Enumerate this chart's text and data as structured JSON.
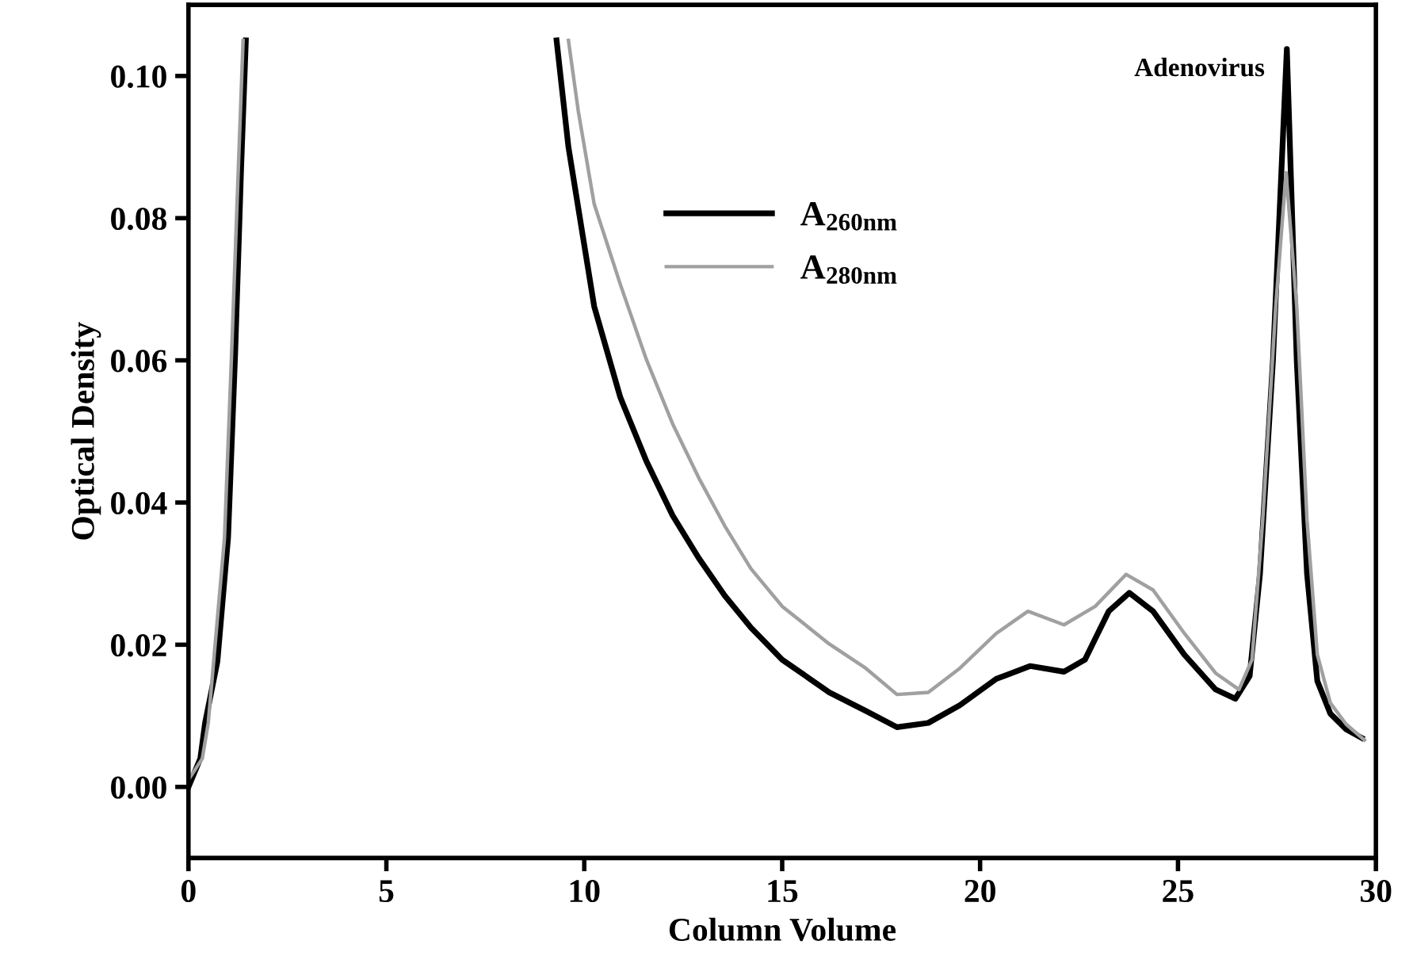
{
  "chart_data": {
    "type": "line",
    "xlabel": "Column Volume",
    "ylabel": "Optical Density",
    "xlim": [
      0,
      30
    ],
    "ylim": [
      -0.01,
      0.11
    ],
    "xticks": [
      0,
      5,
      10,
      15,
      20,
      25,
      30
    ],
    "yticks": [
      {
        "value": 0,
        "label": "0.00"
      },
      {
        "value": 0.02,
        "label": "0.02"
      },
      {
        "value": 0.04,
        "label": "0.04"
      },
      {
        "value": 0.06,
        "label": "0.06"
      },
      {
        "value": 0.08,
        "label": "0.08"
      },
      {
        "value": 0.1,
        "label": "0.10"
      }
    ],
    "grid": false,
    "legend": "center",
    "marker": "none",
    "line_style": "solid",
    "annotations": [
      {
        "text": "Adenovirus",
        "x": 27.75,
        "y": 0.1038
      }
    ],
    "series": [
      {
        "name": "A$_{260nm}$",
        "color": "#000000",
        "x": [
          0,
          0.3,
          0.42,
          0.73,
          1.0,
          1.18,
          1.33,
          1.45,
          null,
          9.3,
          9.6,
          10.25,
          10.91,
          11.57,
          12.23,
          12.89,
          13.55,
          14.21,
          15.0,
          16.19,
          17.11,
          17.9,
          18.69,
          19.49,
          20.41,
          21.27,
          22.12,
          22.65,
          23.25,
          23.77,
          24.37,
          25.16,
          25.95,
          26.45,
          26.81,
          27.07,
          27.4,
          27.75,
          28.0,
          28.26,
          28.52,
          28.85,
          29.25,
          29.64
        ],
        "values": [
          0,
          0.004,
          0.009,
          0.0176,
          0.035,
          0.061,
          0.087,
          0.105,
          null,
          0.105,
          0.09,
          0.0676,
          0.0548,
          0.0458,
          0.0382,
          0.0322,
          0.0269,
          0.0224,
          0.0179,
          0.0133,
          0.0107,
          0.0084,
          0.009,
          0.0115,
          0.0152,
          0.017,
          0.0162,
          0.0179,
          0.0247,
          0.0273,
          0.0247,
          0.0186,
          0.0137,
          0.0124,
          0.0156,
          0.0299,
          0.0601,
          0.1038,
          0.06,
          0.03,
          0.0149,
          0.0103,
          0.0081,
          0.0069
        ]
      },
      {
        "name": "A$_{280nm}$",
        "color": "#a0a0a0",
        "x": [
          0,
          0.35,
          0.5,
          0.91,
          1.09,
          1.26,
          1.38,
          null,
          9.6,
          9.85,
          10.25,
          10.91,
          11.57,
          12.23,
          12.89,
          13.55,
          14.21,
          15.0,
          16.19,
          17.11,
          17.9,
          18.69,
          19.49,
          20.41,
          21.21,
          22.12,
          22.91,
          23.69,
          24.37,
          25.16,
          25.95,
          26.54,
          26.87,
          27.14,
          27.47,
          27.73,
          28.0,
          28.26,
          28.52,
          28.85,
          29.25,
          29.71
        ],
        "values": [
          0.001,
          0.004,
          0.009,
          0.035,
          0.061,
          0.087,
          0.105,
          null,
          0.105,
          0.095,
          0.082,
          0.0707,
          0.0601,
          0.0511,
          0.0435,
          0.0367,
          0.0307,
          0.0254,
          0.0201,
          0.0167,
          0.013,
          0.0133,
          0.0167,
          0.0216,
          0.0247,
          0.0228,
          0.0254,
          0.0299,
          0.0277,
          0.0216,
          0.016,
          0.0137,
          0.0179,
          0.0375,
          0.0676,
          0.0864,
          0.0676,
          0.0375,
          0.0186,
          0.0118,
          0.0088,
          0.0066
        ]
      }
    ]
  }
}
